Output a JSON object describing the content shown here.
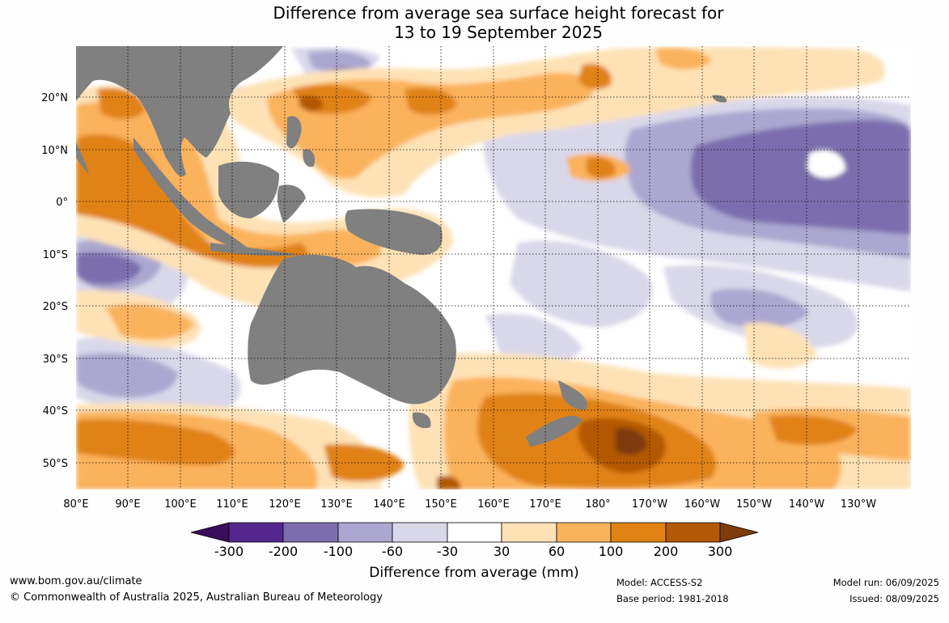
{
  "title": {
    "line1": "Difference from average sea surface height forecast for",
    "line2": "13 to 19 September 2025"
  },
  "map": {
    "lon_labels": [
      "80°E",
      "90°E",
      "100°E",
      "110°E",
      "120°E",
      "130°E",
      "140°E",
      "150°E",
      "160°E",
      "170°E",
      "180°",
      "170°W",
      "160°W",
      "150°W",
      "140°W",
      "130°W"
    ],
    "lat_labels": [
      "20°N",
      "10°N",
      "0°",
      "10°S",
      "20°S",
      "30°S",
      "40°S",
      "50°S"
    ],
    "colors": {
      "land": "#808080",
      "ocean_neutral": "#ffffff",
      "gridline": "#000000"
    }
  },
  "legend": {
    "ticks": [
      "-300",
      "-200",
      "-100",
      "-60",
      "-30",
      "30",
      "60",
      "100",
      "200",
      "300"
    ],
    "label": "Difference from average (mm)",
    "colors": [
      "#3b0d5c",
      "#54278f",
      "#7c6eae",
      "#aba7d0",
      "#d9d8ea",
      "#ffffff",
      "#fee2b6",
      "#fbb25c",
      "#e08214",
      "#b35806",
      "#7f3b08"
    ]
  },
  "footer": {
    "url": "www.bom.gov.au/climate",
    "copyright": "© Commonwealth of Australia 2025, Australian Bureau of Meteorology",
    "model": "Model: ACCESS-S2",
    "base_period": "Base period: 1981-2018",
    "model_run": "Model run: 06/09/2025",
    "issued": "Issued: 08/09/2025"
  }
}
